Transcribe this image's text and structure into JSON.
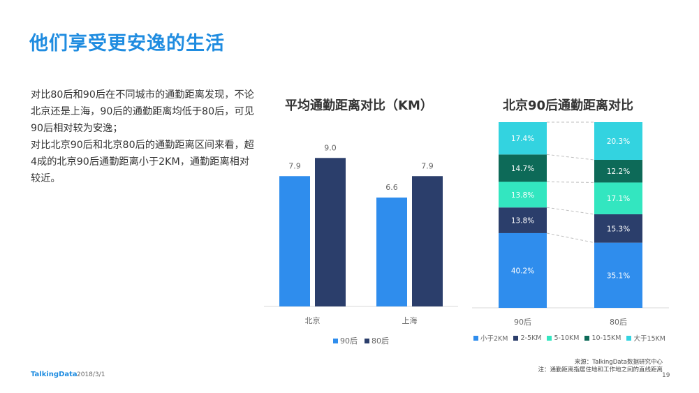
{
  "page": {
    "title": "他们享受更安逸的生活",
    "paragraphs": [
      "对比80后和90后在不同城市的通勤距离发现，不论北京还是上海，90后的通勤距离均低于80后，可见90后相对较为安逸；",
      "对比北京90后和北京80后的通勤距离区间来看，超4成的北京90后通勤距离小于2KM，通勤距离相对较近。"
    ],
    "footer": {
      "brand": "TalkingData",
      "date": "2018/3/1",
      "page_number": "19",
      "source": "来源：TalkingData数据研究中心",
      "note": "注：通勤距离指居住地和工作地之间的直线距离"
    }
  },
  "chart_data": [
    {
      "type": "bar",
      "title": "平均通勤距离对比（KM）",
      "categories": [
        "北京",
        "上海"
      ],
      "series": [
        {
          "name": "90后",
          "values": [
            7.9,
            6.6
          ],
          "color": "#2f8ded"
        },
        {
          "name": "80后",
          "values": [
            9.0,
            7.9
          ],
          "color": "#2b3e6b"
        }
      ],
      "ylim": [
        0,
        11
      ],
      "grid": false,
      "legend_position": "bottom"
    },
    {
      "type": "bar",
      "stacked": true,
      "percent": true,
      "title": "北京90后通勤距离对比",
      "categories": [
        "90后",
        "80后"
      ],
      "series": [
        {
          "name": "小于2KM",
          "values": [
            40.2,
            35.1
          ],
          "labels": [
            "40.2%",
            "35.1%"
          ],
          "color": "#2f8ded"
        },
        {
          "name": "2-5KM",
          "values": [
            13.8,
            15.3
          ],
          "labels": [
            "13.8%",
            "15.3%"
          ],
          "color": "#2b3e6b"
        },
        {
          "name": "5-10KM",
          "values": [
            13.8,
            17.1
          ],
          "labels": [
            "13.8%",
            "17.1%"
          ],
          "color": "#33e6c0"
        },
        {
          "name": "10-15KM",
          "values": [
            14.7,
            12.2
          ],
          "labels": [
            "14.7%",
            "12.2%"
          ],
          "color": "#0d6a58"
        },
        {
          "name": "大于15KM",
          "values": [
            17.4,
            20.3
          ],
          "labels": [
            "17.4%",
            "20.3%"
          ],
          "color": "#33d3e0"
        }
      ],
      "ylim": [
        0,
        100
      ],
      "grid": false,
      "legend_position": "bottom"
    }
  ]
}
